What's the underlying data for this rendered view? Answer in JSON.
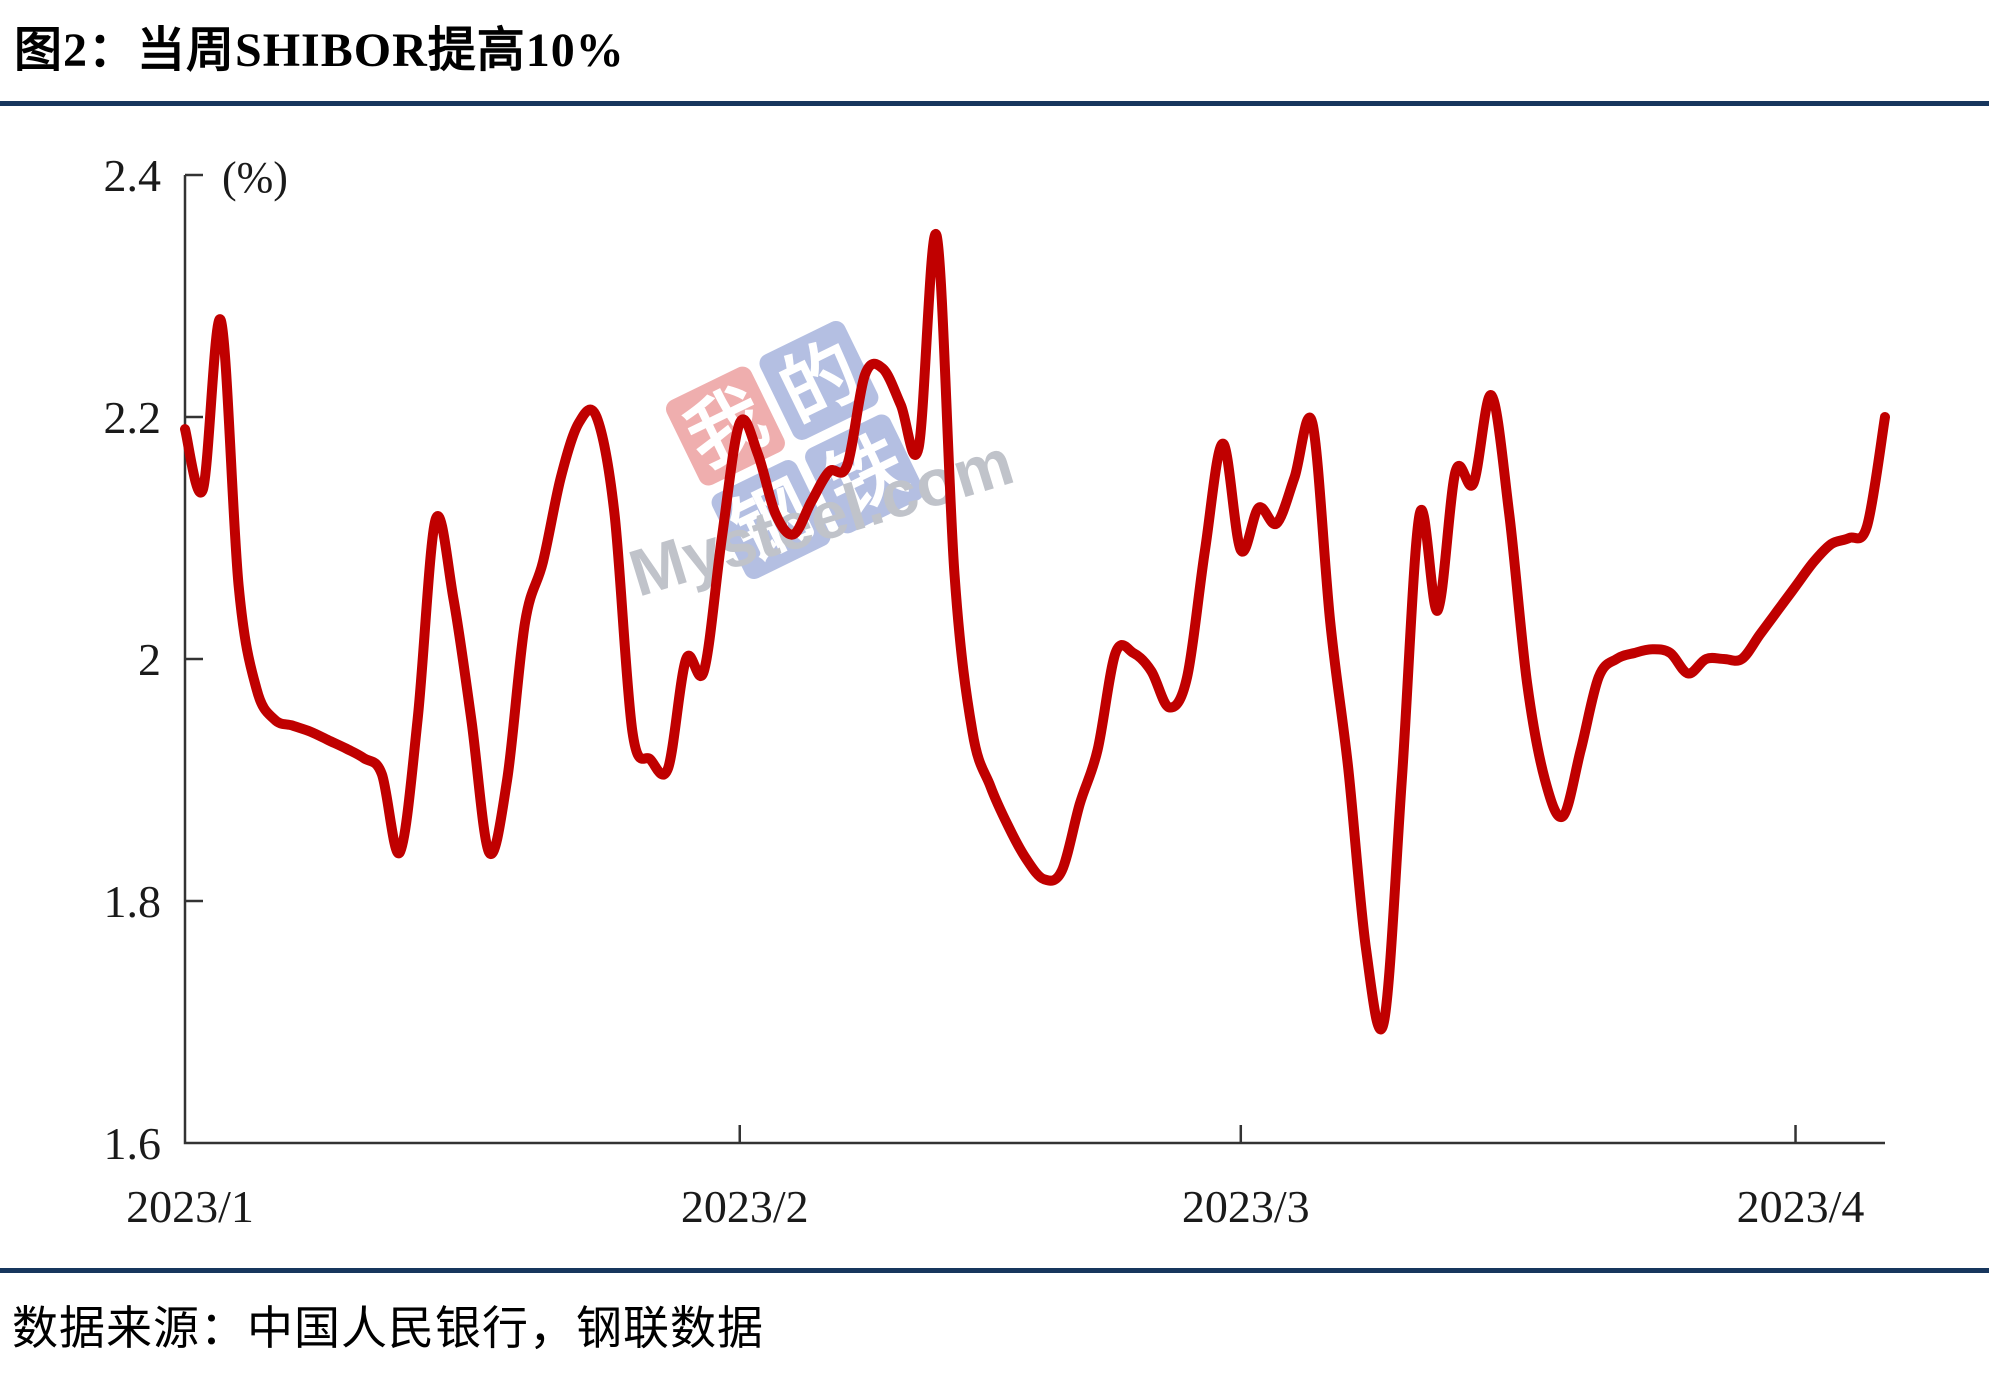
{
  "page": {
    "title": "图2：当周SHIBOR提高10%",
    "source": "数据来源：中国人民银行，钢联数据",
    "rule_color": "#17365d"
  },
  "watermark": {
    "grid": [
      {
        "char": "我",
        "bg": "#efaeae"
      },
      {
        "char": "的",
        "bg": "#b4bfe2"
      },
      {
        "char": "钢",
        "bg": "#b4bfe2"
      },
      {
        "char": "铁",
        "bg": "#b4bfe2"
      }
    ],
    "text": "Mysteel.com",
    "text_color": "#c0c3ca",
    "glyph_color": "#ffffff"
  },
  "chart_data": {
    "type": "line",
    "title": "当周SHIBOR提高10%",
    "unit_label": "(%)",
    "series_name": "SHIBOR",
    "series_color": "#c00000",
    "axis_color": "#333333",
    "label_color": "#1a1a1a",
    "grid": false,
    "legend": false,
    "ylim": [
      1.6,
      2.4
    ],
    "y_ticks": [
      {
        "label": "2.4",
        "value": 2.4
      },
      {
        "label": "2.2",
        "value": 2.2
      },
      {
        "label": "2",
        "value": 2.0
      },
      {
        "label": "1.8",
        "value": 1.8
      },
      {
        "label": "1.6",
        "value": 1.6
      }
    ],
    "x_ticks": [
      {
        "label": "2023/1",
        "day": 1
      },
      {
        "label": "2023/2",
        "day": 32
      },
      {
        "label": "2023/3",
        "day": 60
      },
      {
        "label": "2023/4",
        "day": 91
      }
    ],
    "x_unit": "daily, day index from 2023/1 start of axis",
    "values": [
      2.19,
      2.14,
      2.28,
      2.06,
      1.975,
      1.95,
      1.945,
      1.94,
      1.933,
      1.926,
      1.918,
      1.905,
      1.84,
      1.95,
      2.115,
      2.05,
      1.95,
      1.84,
      1.9,
      2.03,
      2.08,
      2.15,
      2.195,
      2.2,
      2.12,
      1.94,
      1.917,
      1.91,
      2.0,
      1.99,
      2.1,
      2.195,
      2.17,
      2.12,
      2.103,
      2.13,
      2.155,
      2.16,
      2.235,
      2.24,
      2.21,
      2.175,
      2.35,
      2.07,
      1.94,
      1.895,
      1.862,
      1.835,
      1.818,
      1.825,
      1.88,
      1.925,
      2.005,
      2.005,
      1.99,
      1.96,
      1.985,
      2.09,
      2.178,
      2.09,
      2.125,
      2.112,
      2.15,
      2.195,
      2.03,
      1.91,
      1.76,
      1.7,
      1.9,
      2.12,
      2.04,
      2.155,
      2.145,
      2.218,
      2.12,
      1.98,
      1.9,
      1.87,
      1.925,
      1.985,
      2.0,
      2.005,
      2.008,
      2.005,
      1.988,
      2.0,
      2.0,
      2.0,
      2.02,
      2.04,
      2.06,
      2.08,
      2.095,
      2.1,
      2.11,
      2.2
    ]
  }
}
